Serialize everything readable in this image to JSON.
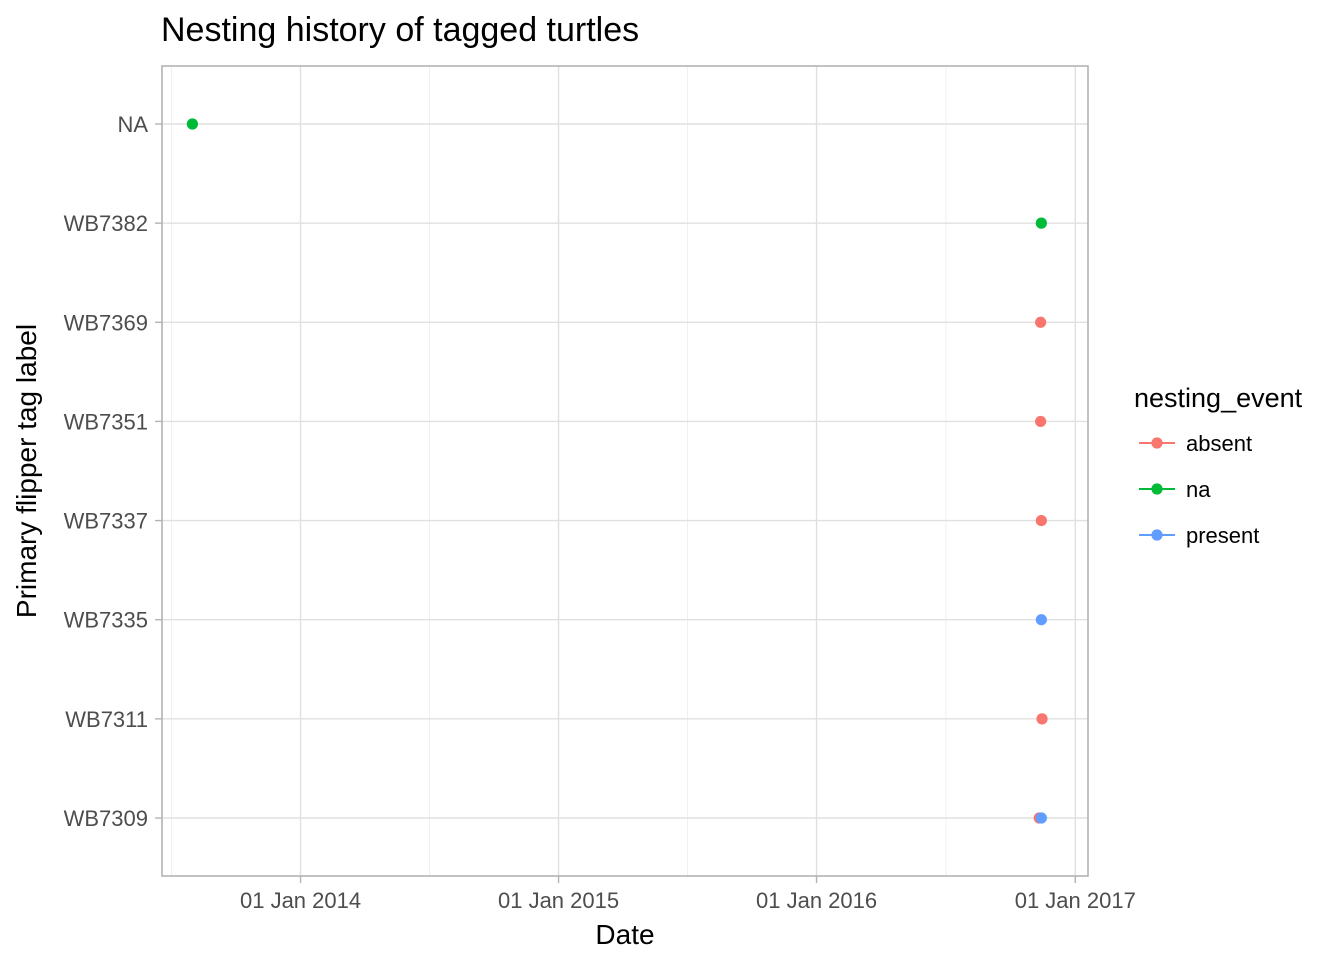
{
  "chart_data": {
    "type": "scatter",
    "title": "Nesting history of tagged turtles",
    "xlabel": "Date",
    "ylabel": "Primary flipper tag label",
    "x_axis": {
      "type": "date",
      "range": [
        "2013-06-19",
        "2017-01-19"
      ],
      "ticks": [
        "2014-01-01",
        "2015-01-01",
        "2016-01-01",
        "2017-01-01"
      ],
      "tick_labels": [
        "01 Jan 2014",
        "01 Jan 2015",
        "01 Jan 2016",
        "01 Jan 2017"
      ]
    },
    "categories": [
      "WB7309",
      "WB7311",
      "WB7335",
      "WB7337",
      "WB7351",
      "WB7369",
      "WB7382",
      "NA"
    ],
    "legend": {
      "title": "nesting_event",
      "position": "right",
      "entries": [
        {
          "label": "absent",
          "color": "#F8766D"
        },
        {
          "label": "na",
          "color": "#00BA38"
        },
        {
          "label": "present",
          "color": "#619CFF"
        }
      ]
    },
    "grid": true,
    "series": [
      {
        "name": "absent",
        "color": "#F8766D",
        "points": [
          {
            "x": "2016-11-13",
            "y": "WB7369"
          },
          {
            "x": "2016-11-13",
            "y": "WB7351"
          },
          {
            "x": "2016-11-14",
            "y": "WB7337"
          },
          {
            "x": "2016-11-15",
            "y": "WB7311"
          },
          {
            "x": "2016-11-11",
            "y": "WB7309"
          }
        ]
      },
      {
        "name": "na",
        "color": "#00BA38",
        "points": [
          {
            "x": "2013-08-01",
            "y": "NA"
          },
          {
            "x": "2016-11-14",
            "y": "WB7382"
          }
        ]
      },
      {
        "name": "present",
        "color": "#619CFF",
        "points": [
          {
            "x": "2016-11-14",
            "y": "WB7335"
          },
          {
            "x": "2016-11-14",
            "y": "WB7309"
          }
        ]
      }
    ]
  }
}
